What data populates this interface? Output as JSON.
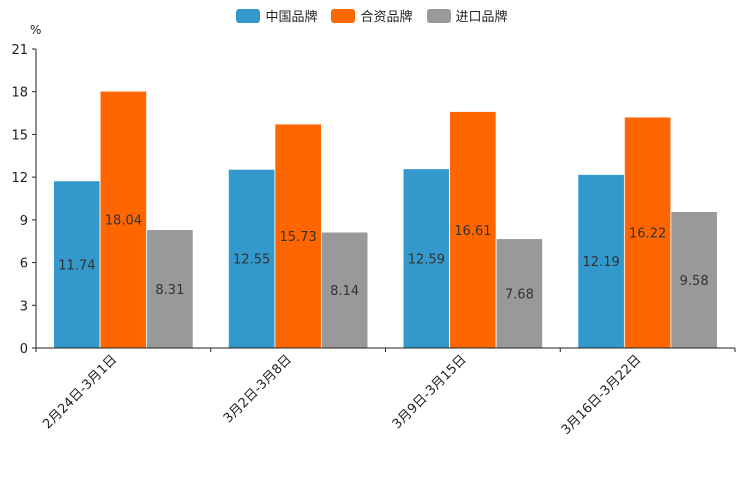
{
  "chart_data": {
    "type": "bar",
    "unit_label": "%",
    "categories": [
      "2月24日-3月1日",
      "3月2日-3月8日",
      "3月9日-3月15日",
      "3月16日-3月22日"
    ],
    "series": [
      {
        "name": "中国品牌",
        "color": "#3399cc",
        "values": [
          11.74,
          12.55,
          12.59,
          12.19
        ]
      },
      {
        "name": "合资品牌",
        "color": "#ff6600",
        "values": [
          18.04,
          15.73,
          16.61,
          16.22
        ]
      },
      {
        "name": "进口品牌",
        "color": "#999999",
        "values": [
          8.31,
          8.14,
          7.68,
          9.58
        ]
      }
    ],
    "ylim": [
      0,
      21
    ],
    "yticks": [
      0,
      3,
      6,
      9,
      12,
      15,
      18,
      21
    ],
    "legend_position": "top-center",
    "grid": false
  }
}
